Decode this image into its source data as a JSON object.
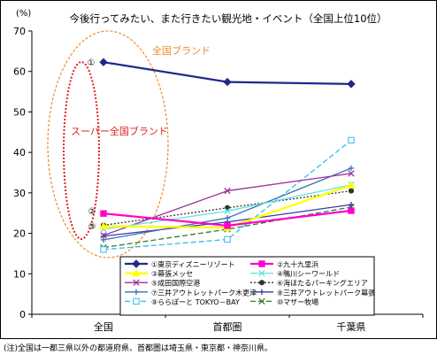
{
  "chart_data": {
    "type": "line",
    "title": "今後行ってみたい、また行きたい観光地・イベント（全国上位10位）",
    "ylabel": "(%)",
    "xlabel": "",
    "categories": [
      "全国",
      "首都圏",
      "千葉県"
    ],
    "ylim": [
      0,
      70
    ],
    "yticks": [
      0,
      10,
      20,
      30,
      40,
      50,
      60,
      70
    ],
    "grid": false,
    "legend_position": "bottom",
    "series": [
      {
        "name": "①東京ディズニーリゾート",
        "values": [
          62.3,
          57.4,
          56.9
        ],
        "color": "#1f2a8a",
        "marker": "diamond",
        "dash": ""
      },
      {
        "name": "②九十九里浜",
        "values": [
          24.9,
          21.9,
          25.6
        ],
        "color": "#ff00cc",
        "marker": "square",
        "dash": ""
      },
      {
        "name": "③幕張メッセ",
        "values": [
          21.8,
          21.4,
          31.9
        ],
        "color": "#ffff00",
        "marker": "triangle",
        "dash": ""
      },
      {
        "name": "④鴨川シーワールド",
        "values": [
          21.0,
          25.5,
          32.0
        ],
        "color": "#66e0e0",
        "marker": "x",
        "dash": ""
      },
      {
        "name": "⑤成田国際空港",
        "values": [
          19.5,
          30.5,
          34.8
        ],
        "color": "#993399",
        "marker": "x",
        "dash": ""
      },
      {
        "name": "⑥海ほたるパーキングエリア",
        "values": [
          22.0,
          26.3,
          30.5
        ],
        "color": "#333333",
        "marker": "dot",
        "dash": "2,2"
      },
      {
        "name": "⑦三井アウトレットパーク木更津",
        "values": [
          18.4,
          23.8,
          36.1
        ],
        "color": "#3d6fb5",
        "marker": "plus",
        "dash": ""
      },
      {
        "name": "⑧三井アウトレットパーク幕張",
        "values": [
          19.3,
          22.8,
          27.1
        ],
        "color": "#3a3aa8",
        "marker": "plus",
        "dash": ""
      },
      {
        "name": "⑨ららぽーと TOKYO－BAY",
        "values": [
          16.0,
          18.5,
          43.0
        ],
        "color": "#33bbee",
        "marker": "opensquare",
        "dash": "6,3"
      },
      {
        "name": "⑩マザー牧場",
        "values": [
          16.5,
          21.0,
          26.5
        ],
        "color": "#2e7d32",
        "marker": "x",
        "dash": "6,3"
      }
    ],
    "annotations": [
      {
        "text": "全国ブランド",
        "color": "#f08a24"
      },
      {
        "text": "スーパー全国ブランド",
        "color": "#e02020"
      },
      {
        "text": "①"
      },
      {
        "text": "②"
      },
      {
        "text": "③"
      }
    ]
  },
  "footnote": "(注)全国は一都三県以外の都道府県、首都圏は埼玉県・東京都・神奈川県。"
}
